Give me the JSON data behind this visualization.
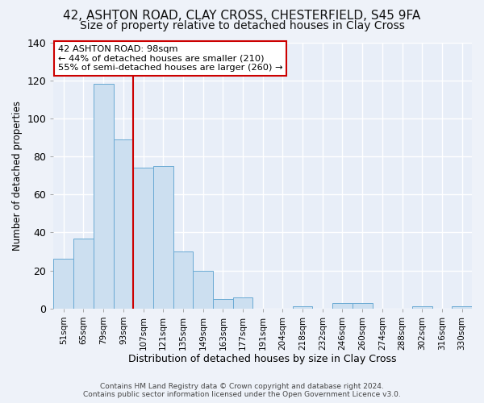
{
  "title1": "42, ASHTON ROAD, CLAY CROSS, CHESTERFIELD, S45 9FA",
  "title2": "Size of property relative to detached houses in Clay Cross",
  "xlabel": "Distribution of detached houses by size in Clay Cross",
  "ylabel": "Number of detached properties",
  "bar_labels": [
    "51sqm",
    "65sqm",
    "79sqm",
    "93sqm",
    "107sqm",
    "121sqm",
    "135sqm",
    "149sqm",
    "163sqm",
    "177sqm",
    "191sqm",
    "204sqm",
    "218sqm",
    "232sqm",
    "246sqm",
    "260sqm",
    "274sqm",
    "288sqm",
    "302sqm",
    "316sqm",
    "330sqm"
  ],
  "bar_heights": [
    26,
    37,
    118,
    89,
    74,
    75,
    30,
    20,
    5,
    6,
    0,
    0,
    1,
    0,
    3,
    3,
    0,
    0,
    1,
    0,
    1
  ],
  "bar_color": "#ccdff0",
  "bar_edge_color": "#6aaad4",
  "vline_x": 3.5,
  "vline_color": "#cc0000",
  "annotation_title": "42 ASHTON ROAD: 98sqm",
  "annotation_line1": "← 44% of detached houses are smaller (210)",
  "annotation_line2": "55% of semi-detached houses are larger (260) →",
  "annotation_box_edge": "#cc0000",
  "ylim": [
    0,
    140
  ],
  "yticks": [
    0,
    20,
    40,
    60,
    80,
    100,
    120,
    140
  ],
  "footnote1": "Contains HM Land Registry data © Crown copyright and database right 2024.",
  "footnote2": "Contains public sector information licensed under the Open Government Licence v3.0.",
  "background_color": "#eef2f9",
  "plot_bg_color": "#e8eef8",
  "grid_color": "#ffffff",
  "title_fontsize": 11,
  "subtitle_fontsize": 10
}
